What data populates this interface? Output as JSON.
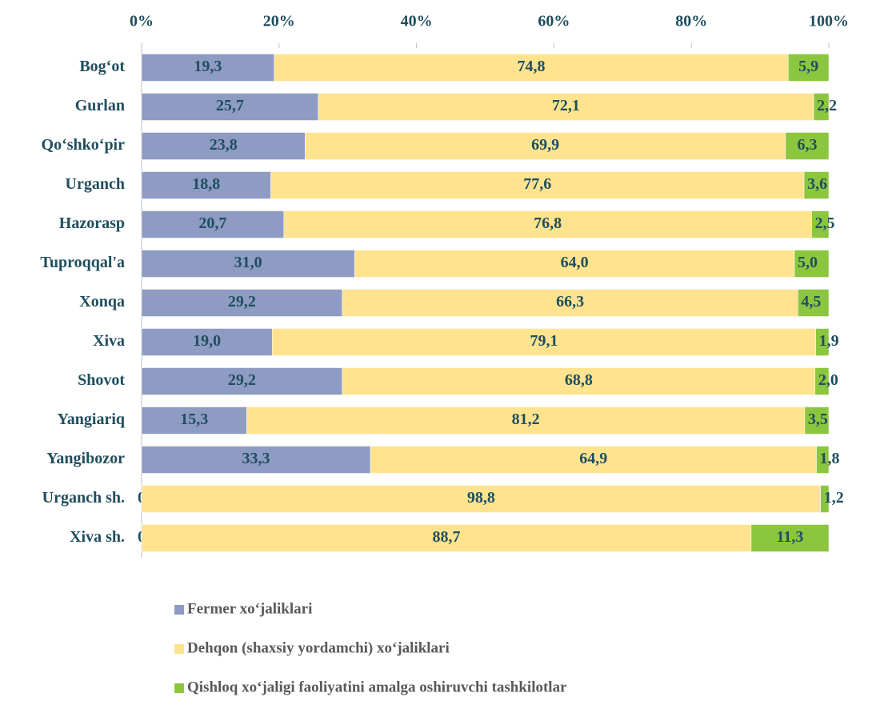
{
  "chart_data": {
    "type": "stacked_hbar",
    "categories": [
      "Bog‘ot",
      "Gurlan",
      "Qo‘shko‘pir",
      "Urganch",
      "Hazorasp",
      "Tuproqqal'a",
      "Xonqa",
      "Xiva",
      "Shovot",
      "Yangiariq",
      "Yangibozor",
      "Urganch sh.",
      "Xiva sh."
    ],
    "series": [
      {
        "name": "Fermer xo‘jaliklari",
        "color": "#8e9bc2",
        "values": [
          19.3,
          25.7,
          23.8,
          18.8,
          20.7,
          31.0,
          29.2,
          19.0,
          29.2,
          15.3,
          33.3,
          0,
          0
        ],
        "value_labels": [
          "19,3",
          "25,7",
          "23,8",
          "18,8",
          "20,7",
          "31,0",
          "29,2",
          "19,0",
          "29,2",
          "15,3",
          "33,3",
          "0",
          "0"
        ]
      },
      {
        "name": "Dehqon (shaxsiy yordamchi) xo‘jaliklari",
        "color": "#ffe38f",
        "values": [
          74.8,
          72.1,
          69.9,
          77.6,
          76.8,
          64.0,
          66.3,
          79.1,
          68.8,
          81.2,
          64.9,
          98.8,
          88.7
        ],
        "value_labels": [
          "74,8",
          "72,1",
          "69,9",
          "77,6",
          "76,8",
          "64,0",
          "66,3",
          "79,1",
          "68,8",
          "81,2",
          "64,9",
          "98,8",
          "88,7"
        ]
      },
      {
        "name": "Qishloq xo‘jaligi faoliyatini amalga oshiruvchi tashkilotlar",
        "color": "#8cc63f",
        "values": [
          5.9,
          2.2,
          6.3,
          3.6,
          2.5,
          5.0,
          4.5,
          1.9,
          2.0,
          3.5,
          1.8,
          1.2,
          11.3
        ],
        "value_labels": [
          "5,9",
          "2,2",
          "6,3",
          "3,6",
          "2,5",
          "5,0",
          "4,5",
          "1,9",
          "2,0",
          "3,5",
          "1,8",
          "1,2",
          "11,3"
        ]
      }
    ],
    "xlim": [
      0,
      100
    ],
    "xticks": [
      {
        "value": 0,
        "label": "0%"
      },
      {
        "value": 20,
        "label": "20%"
      },
      {
        "value": 40,
        "label": "40%"
      },
      {
        "value": 60,
        "label": "60%"
      },
      {
        "value": 80,
        "label": "80%"
      },
      {
        "value": 100,
        "label": "100%"
      }
    ]
  }
}
